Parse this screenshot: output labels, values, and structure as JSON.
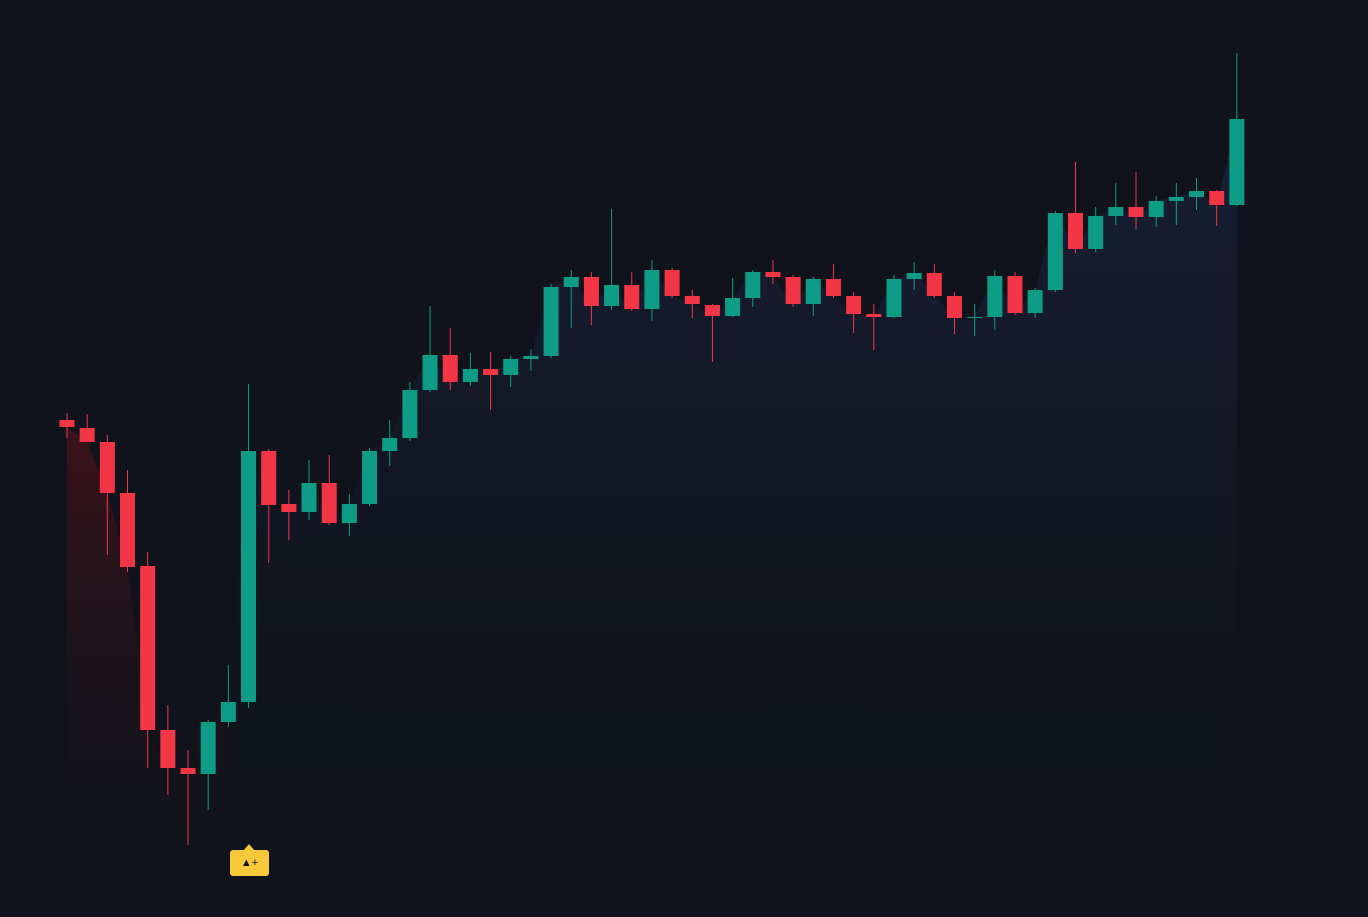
{
  "chart_data": {
    "type": "candlestick",
    "up_color": "#0e9c86",
    "down_color": "#f23645",
    "ylim": [
      0,
      917
    ],
    "open": [
      497,
      489,
      475,
      424,
      351,
      187,
      149,
      143,
      195,
      215,
      466,
      413,
      405,
      434,
      394,
      413,
      466,
      479,
      527,
      562,
      535,
      548,
      542,
      558,
      561,
      630,
      640,
      611,
      632,
      608,
      647,
      621,
      612,
      601,
      619,
      645,
      640,
      613,
      638,
      621,
      603,
      600,
      638,
      644,
      621,
      599,
      600,
      641,
      604,
      627,
      704,
      668,
      701,
      710,
      700,
      716,
      720,
      726,
      712
    ],
    "high": [
      504,
      503,
      482,
      447,
      365,
      212,
      167,
      197,
      252,
      533,
      468,
      427,
      457,
      462,
      423,
      469,
      497,
      535,
      611,
      589,
      564,
      565,
      561,
      568,
      633,
      647,
      645,
      708,
      645,
      657,
      649,
      627,
      613,
      639,
      647,
      657,
      642,
      640,
      653,
      625,
      613,
      642,
      655,
      653,
      625,
      613,
      647,
      645,
      629,
      706,
      755,
      710,
      734,
      745,
      721,
      734,
      739,
      727,
      864
    ],
    "low": [
      479,
      475,
      362,
      345,
      149,
      122,
      72,
      107,
      190,
      209,
      354,
      377,
      397,
      392,
      381,
      411,
      451,
      476,
      525,
      527,
      531,
      507,
      530,
      546,
      559,
      589,
      592,
      607,
      606,
      596,
      619,
      599,
      555,
      600,
      610,
      633,
      610,
      601,
      619,
      584,
      567,
      599,
      627,
      619,
      583,
      581,
      587,
      602,
      599,
      625,
      664,
      665,
      692,
      688,
      690,
      692,
      707,
      691,
      711
    ],
    "close": [
      490,
      475,
      424,
      350,
      187,
      149,
      143,
      195,
      215,
      466,
      412,
      405,
      434,
      394,
      413,
      466,
      479,
      527,
      562,
      535,
      548,
      542,
      558,
      561,
      630,
      640,
      611,
      632,
      608,
      647,
      621,
      613,
      601,
      619,
      645,
      640,
      613,
      638,
      621,
      603,
      600,
      638,
      644,
      621,
      599,
      600,
      641,
      604,
      627,
      704,
      668,
      701,
      710,
      700,
      716,
      720,
      726,
      712,
      798
    ],
    "annotation": "▲+"
  }
}
